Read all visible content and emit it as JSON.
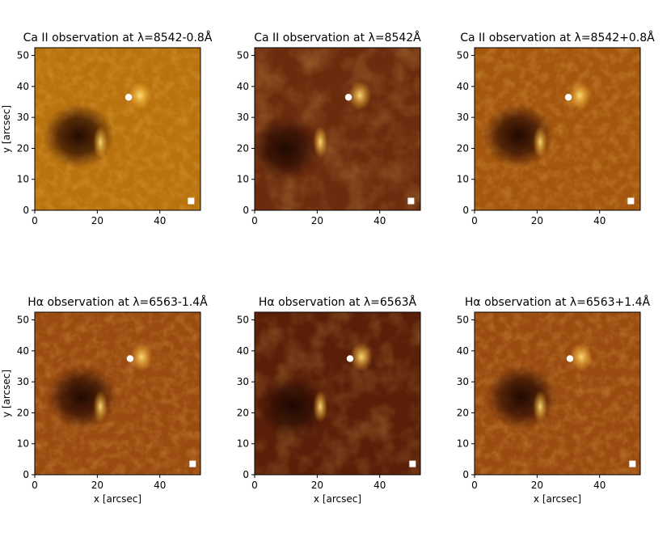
{
  "chart_data": [
    {
      "type": "heatmap",
      "title": "Ca II observation at λ=8542-0.8Å",
      "xlabel": "",
      "ylabel": "y [arcsec]",
      "xlim": [
        0,
        53
      ],
      "ylim": [
        0,
        52.5
      ],
      "xticks": [
        0,
        20,
        40
      ],
      "yticks": [
        0,
        10,
        20,
        30,
        40,
        50
      ],
      "colormap": "copper-gold",
      "base_color": "#b8720e",
      "features": {
        "umbra_center": [
          14,
          24
        ],
        "circle_marker": [
          30,
          36.5
        ],
        "square_marker": [
          50,
          3
        ]
      }
    },
    {
      "type": "heatmap",
      "title": "Ca II observation at λ=8542Å",
      "xlabel": "",
      "ylabel": "",
      "xlim": [
        0,
        53
      ],
      "ylim": [
        0,
        52.5
      ],
      "xticks": [
        0,
        20,
        40
      ],
      "yticks": [
        0,
        10,
        20,
        30,
        40,
        50
      ],
      "colormap": "copper-gold",
      "base_color": "#6b2c0e",
      "features": {
        "umbra_center": [
          10,
          20
        ],
        "circle_marker": [
          30,
          36.5
        ],
        "square_marker": [
          50,
          3
        ]
      }
    },
    {
      "type": "heatmap",
      "title": "Ca II observation at λ=8542+0.8Å",
      "xlabel": "",
      "ylabel": "",
      "xlim": [
        0,
        53
      ],
      "ylim": [
        0,
        52.5
      ],
      "xticks": [
        0,
        20,
        40
      ],
      "yticks": [
        0,
        10,
        20,
        30,
        40,
        50
      ],
      "colormap": "copper-gold",
      "base_color": "#a4560e",
      "features": {
        "umbra_center": [
          14,
          24
        ],
        "circle_marker": [
          30,
          36.5
        ],
        "square_marker": [
          50,
          3
        ]
      }
    },
    {
      "type": "heatmap",
      "title": "Hα observation at λ=6563-1.4Å",
      "xlabel": "x [arcsec]",
      "ylabel": "y [arcsec]",
      "xlim": [
        0,
        53
      ],
      "ylim": [
        0,
        52.5
      ],
      "xticks": [
        0,
        20,
        40
      ],
      "yticks": [
        0,
        10,
        20,
        30,
        40,
        50
      ],
      "colormap": "copper-gold",
      "base_color": "#9a4b10",
      "features": {
        "umbra_center": [
          15,
          25
        ],
        "circle_marker": [
          30.5,
          37.5
        ],
        "square_marker": [
          50.5,
          3.5
        ]
      }
    },
    {
      "type": "heatmap",
      "title": "Hα observation at λ=6563Å",
      "xlabel": "x [arcsec]",
      "ylabel": "",
      "xlim": [
        0,
        53
      ],
      "ylim": [
        0,
        52.5
      ],
      "xticks": [
        0,
        20,
        40
      ],
      "yticks": [
        0,
        10,
        20,
        30,
        40,
        50
      ],
      "colormap": "copper-gold",
      "base_color": "#5a1f08",
      "features": {
        "umbra_center": [
          12,
          22
        ],
        "circle_marker": [
          30.5,
          37.5
        ],
        "square_marker": [
          50.5,
          3.5
        ]
      }
    },
    {
      "type": "heatmap",
      "title": "Hα observation at λ=6563+1.4Å",
      "xlabel": "x [arcsec]",
      "ylabel": "",
      "xlim": [
        0,
        53
      ],
      "ylim": [
        0,
        52.5
      ],
      "xticks": [
        0,
        20,
        40
      ],
      "yticks": [
        0,
        10,
        20,
        30,
        40,
        50
      ],
      "colormap": "copper-gold",
      "base_color": "#9a4b10",
      "features": {
        "umbra_center": [
          15,
          25
        ],
        "circle_marker": [
          30.5,
          37.5
        ],
        "square_marker": [
          50.5,
          3.5
        ]
      }
    }
  ]
}
